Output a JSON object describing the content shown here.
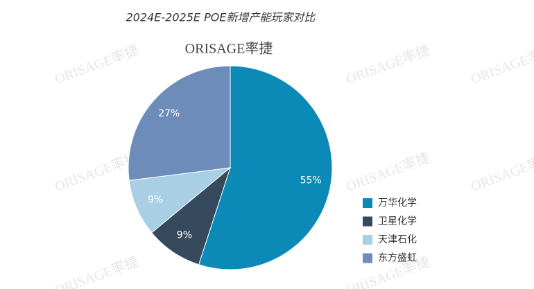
{
  "chart_data": {
    "type": "pie",
    "title": "2024E-2025E POE新增产能玩家对比",
    "logo": "ORISAGE率捷",
    "categories": [
      "万华化学",
      "卫星化学",
      "天津石化",
      "东方盛虹"
    ],
    "values": [
      55,
      9,
      9,
      27
    ],
    "value_labels": [
      "55%",
      "9%",
      "9%",
      "27%"
    ],
    "colors": [
      "#0b8ab8",
      "#364a5e",
      "#a8cfe4",
      "#6e8cb9"
    ],
    "legend": "right"
  }
}
